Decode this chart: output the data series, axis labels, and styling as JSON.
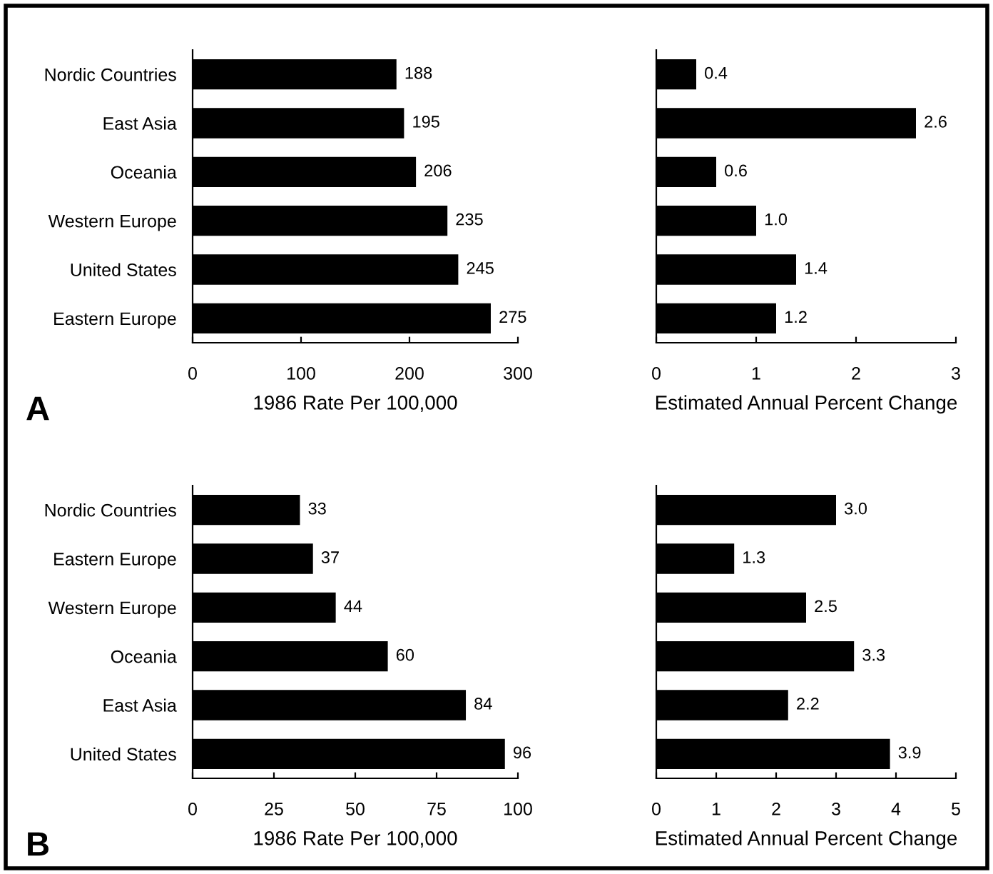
{
  "chart_data": [
    {
      "type": "bar",
      "orientation": "horizontal",
      "categories": [
        "Nordic Countries",
        "East Asia",
        "Oceania",
        "Western Europe",
        "United States",
        "Eastern Europe"
      ],
      "values": [
        188,
        195,
        206,
        235,
        245,
        275
      ],
      "color": "#000000",
      "xlim": [
        0,
        300
      ],
      "xticks": [
        0,
        100,
        200,
        300
      ],
      "xlabel": "1986 Rate Per 100,000",
      "data_labels": true,
      "grid": false,
      "legend": false,
      "annotations": [
        "A"
      ]
    },
    {
      "type": "bar",
      "orientation": "horizontal",
      "categories": [
        null,
        null,
        null,
        null,
        null,
        null
      ],
      "values": [
        0.4,
        2.6,
        0.6,
        1.0,
        1.4,
        1.2
      ],
      "value_labels": [
        "0.4",
        "2.6",
        "0.6",
        "1.0",
        "1.4",
        "1.2"
      ],
      "color": "#000000",
      "xlim": [
        0,
        3
      ],
      "xticks": [
        0,
        1,
        2,
        3
      ],
      "xlabel": "Estimated Annual Percent Change",
      "tick_labels": "x",
      "grid": false,
      "legend": false
    },
    {
      "type": "bar",
      "orientation": "horizontal",
      "categories": [
        "Nordic Countries",
        "Eastern Europe",
        "Western Europe",
        "Oceania",
        "East Asia",
        "United States"
      ],
      "values": [
        33,
        37,
        44,
        60,
        84,
        96
      ],
      "color": "#000000",
      "xlim": [
        0,
        100
      ],
      "xticks": [
        0,
        25,
        50,
        75,
        100
      ],
      "xlabel": "1986 Rate Per 100,000",
      "data_labels": true,
      "grid": false,
      "legend": false,
      "annotations": [
        "B"
      ]
    },
    {
      "type": "bar",
      "orientation": "horizontal",
      "categories": [
        null,
        null,
        null,
        null,
        null,
        null
      ],
      "values": [
        3.0,
        1.3,
        2.5,
        3.3,
        2.2,
        3.9
      ],
      "value_labels": [
        "3.0",
        "1.3",
        "2.5",
        "3.3",
        "2.2",
        "3.9"
      ],
      "color": "#000000",
      "xlim": [
        0,
        5
      ],
      "xticks": [
        0,
        1,
        2,
        3,
        4,
        5
      ],
      "xlabel": "Estimated Annual Percent Change",
      "tick_labels": "x",
      "grid": false,
      "legend": false
    }
  ]
}
